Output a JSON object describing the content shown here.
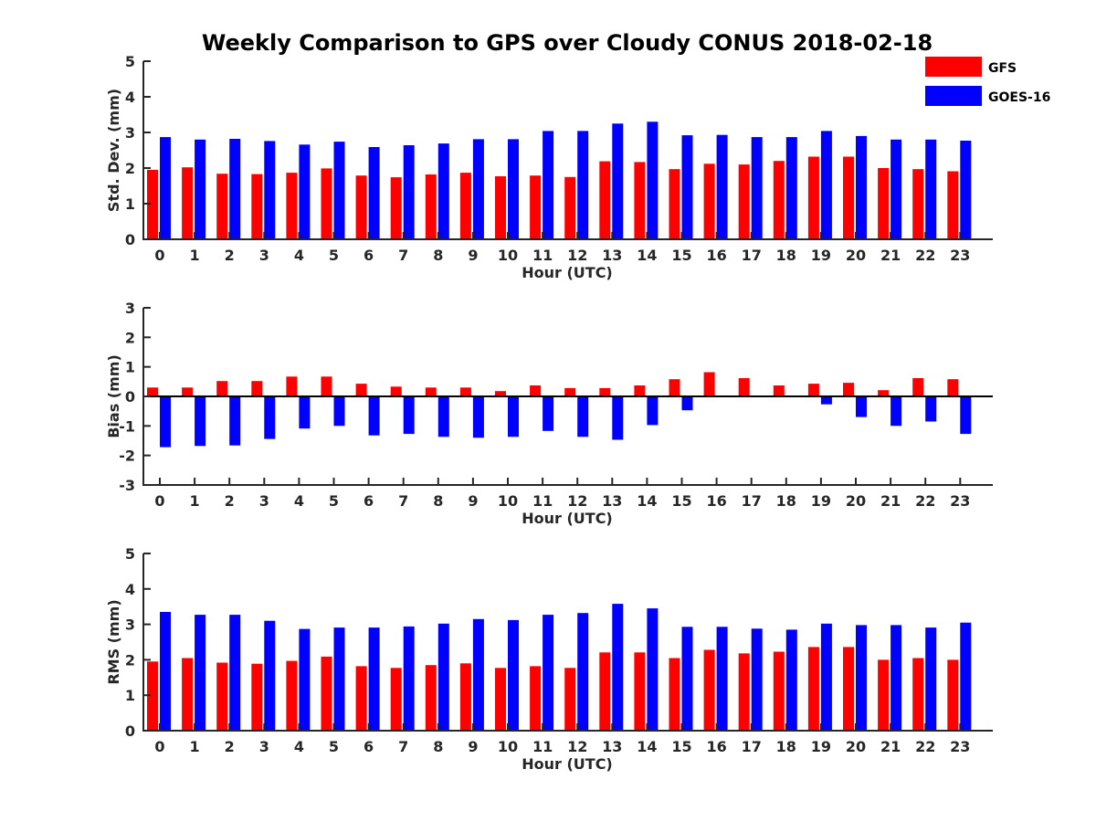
{
  "title": "Weekly Comparison to GPS over Cloudy CONUS 2018-02-18",
  "colors": {
    "GFS": "#ff0000",
    "GOES-16": "#0000ff"
  },
  "legend": {
    "placement": "top-right",
    "entries": [
      "GFS",
      "GOES-16"
    ]
  },
  "chart_data": [
    {
      "type": "bar",
      "categories": [
        "0",
        "1",
        "2",
        "3",
        "4",
        "5",
        "6",
        "7",
        "8",
        "9",
        "10",
        "11",
        "12",
        "13",
        "14",
        "15",
        "16",
        "17",
        "18",
        "19",
        "20",
        "21",
        "22",
        "23"
      ],
      "xlabel": "Hour (UTC)",
      "ylabel": "Std. Dev. (mm)",
      "ylim": [
        0,
        5
      ],
      "yticks": [
        0,
        1,
        2,
        3,
        4,
        5
      ],
      "grid": false,
      "series": [
        {
          "name": "GFS",
          "values": [
            1.95,
            2.02,
            1.84,
            1.83,
            1.87,
            1.99,
            1.79,
            1.74,
            1.82,
            1.87,
            1.77,
            1.79,
            1.75,
            2.19,
            2.17,
            1.97,
            2.12,
            2.1,
            2.2,
            2.32,
            2.32,
            2.0,
            1.97,
            1.91
          ]
        },
        {
          "name": "GOES-16",
          "values": [
            2.87,
            2.8,
            2.82,
            2.76,
            2.66,
            2.74,
            2.59,
            2.64,
            2.69,
            2.81,
            2.81,
            3.04,
            3.04,
            3.25,
            3.3,
            2.92,
            2.93,
            2.87,
            2.87,
            3.04,
            2.9,
            2.8,
            2.8,
            2.77
          ]
        }
      ]
    },
    {
      "type": "bar",
      "categories": [
        "0",
        "1",
        "2",
        "3",
        "4",
        "5",
        "6",
        "7",
        "8",
        "9",
        "10",
        "11",
        "12",
        "13",
        "14",
        "15",
        "16",
        "17",
        "18",
        "19",
        "20",
        "21",
        "22",
        "23"
      ],
      "xlabel": "Hour (UTC)",
      "ylabel": "Bias (mm)",
      "ylim": [
        -3,
        3
      ],
      "yticks": [
        -3,
        -2,
        -1,
        0,
        1,
        2,
        3
      ],
      "grid": false,
      "series": [
        {
          "name": "GFS",
          "values": [
            0.3,
            0.3,
            0.52,
            0.52,
            0.67,
            0.67,
            0.43,
            0.33,
            0.3,
            0.3,
            0.18,
            0.37,
            0.28,
            0.28,
            0.37,
            0.58,
            0.82,
            0.62,
            0.37,
            0.43,
            0.46,
            0.21,
            0.62,
            0.58
          ]
        },
        {
          "name": "GOES-16",
          "values": [
            -1.72,
            -1.68,
            -1.66,
            -1.44,
            -1.09,
            -1.0,
            -1.32,
            -1.27,
            -1.37,
            -1.4,
            -1.37,
            -1.17,
            -1.37,
            -1.47,
            -0.97,
            -0.47,
            0.0,
            0.0,
            -0.03,
            -0.27,
            -0.7,
            -1.0,
            -0.85,
            -1.27
          ]
        }
      ]
    },
    {
      "type": "bar",
      "categories": [
        "0",
        "1",
        "2",
        "3",
        "4",
        "5",
        "6",
        "7",
        "8",
        "9",
        "10",
        "11",
        "12",
        "13",
        "14",
        "15",
        "16",
        "17",
        "18",
        "19",
        "20",
        "21",
        "22",
        "23"
      ],
      "xlabel": "Hour (UTC)",
      "ylabel": "RMS (mm)",
      "ylim": [
        0,
        5
      ],
      "yticks": [
        0,
        1,
        2,
        3,
        4,
        5
      ],
      "grid": false,
      "series": [
        {
          "name": "GFS",
          "values": [
            1.95,
            2.05,
            1.92,
            1.89,
            1.97,
            2.09,
            1.82,
            1.77,
            1.85,
            1.9,
            1.77,
            1.82,
            1.77,
            2.21,
            2.21,
            2.05,
            2.28,
            2.18,
            2.23,
            2.36,
            2.36,
            2.0,
            2.05,
            2.0
          ]
        },
        {
          "name": "GOES-16",
          "values": [
            3.35,
            3.27,
            3.27,
            3.1,
            2.87,
            2.91,
            2.91,
            2.94,
            3.02,
            3.15,
            3.12,
            3.27,
            3.32,
            3.58,
            3.45,
            2.93,
            2.93,
            2.88,
            2.85,
            3.02,
            2.98,
            2.98,
            2.91,
            3.05
          ]
        }
      ]
    }
  ]
}
